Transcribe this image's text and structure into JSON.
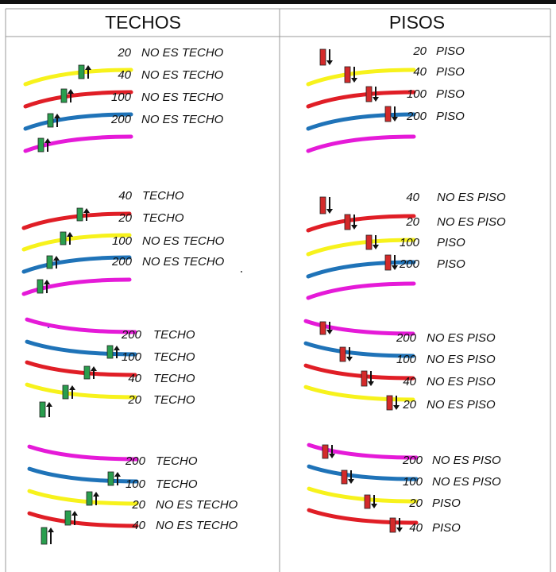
{
  "header": {
    "left": "TECHOS",
    "right": "PISOS"
  },
  "colors": {
    "yellow": "#f7f21c",
    "red": "#e01e26",
    "blue": "#1f73b8",
    "magenta": "#e51ad8",
    "up_candle": "#2a9e4e",
    "down_candle": "#d42a2a",
    "arrow": "#111111"
  },
  "panels": [
    {
      "id": "techos-1",
      "column": "left",
      "orientation": "rising",
      "marker": "up",
      "lines": [
        {
          "color": "yellow",
          "number": "20",
          "label": "NO ES TECHO"
        },
        {
          "color": "red",
          "number": "40",
          "label": "NO ES TECHO"
        },
        {
          "color": "blue",
          "number": "100",
          "label": "NO ES TECHO"
        },
        {
          "color": "magenta",
          "number": "200",
          "label": "NO ES TECHO"
        }
      ]
    },
    {
      "id": "pisos-1",
      "column": "right",
      "orientation": "rising",
      "marker": "down",
      "lines": [
        {
          "color": "yellow",
          "number": "20",
          "label": "PISO"
        },
        {
          "color": "red",
          "number": "40",
          "label": "PISO"
        },
        {
          "color": "blue",
          "number": "100",
          "label": "PISO"
        },
        {
          "color": "magenta",
          "number": "200",
          "label": "PISO"
        }
      ]
    },
    {
      "id": "techos-2",
      "column": "left",
      "orientation": "rising",
      "marker": "up",
      "lines": [
        {
          "color": "red",
          "number": "40",
          "label": "TECHO"
        },
        {
          "color": "yellow",
          "number": "20",
          "label": "TECHO"
        },
        {
          "color": "blue",
          "number": "100",
          "label": "NO ES TECHO"
        },
        {
          "color": "magenta",
          "number": "200",
          "label": "NO ES TECHO"
        }
      ]
    },
    {
      "id": "pisos-2",
      "column": "right",
      "orientation": "rising",
      "marker": "down",
      "lines": [
        {
          "color": "red",
          "number": "40",
          "label": "NO ES PISO"
        },
        {
          "color": "yellow",
          "number": "20",
          "label": "NO ES PISO"
        },
        {
          "color": "blue",
          "number": "100",
          "label": "PISO"
        },
        {
          "color": "magenta",
          "number": "200",
          "label": "PISO"
        }
      ]
    },
    {
      "id": "techos-3",
      "column": "left",
      "orientation": "falling",
      "marker": "up",
      "lines": [
        {
          "color": "magenta",
          "number": "200",
          "label": "TECHO"
        },
        {
          "color": "blue",
          "number": "100",
          "label": "TECHO"
        },
        {
          "color": "red",
          "number": "40",
          "label": "TECHO"
        },
        {
          "color": "yellow",
          "number": "20",
          "label": "TECHO"
        }
      ]
    },
    {
      "id": "pisos-3",
      "column": "right",
      "orientation": "falling",
      "marker": "down",
      "lines": [
        {
          "color": "magenta",
          "number": "200",
          "label": "NO ES PISO"
        },
        {
          "color": "blue",
          "number": "100",
          "label": "NO ES PISO"
        },
        {
          "color": "red",
          "number": "40",
          "label": "NO ES PISO"
        },
        {
          "color": "yellow",
          "number": "20",
          "label": "NO ES PISO"
        }
      ]
    },
    {
      "id": "techos-4",
      "column": "left",
      "orientation": "falling",
      "marker": "up",
      "lines": [
        {
          "color": "magenta",
          "number": "200",
          "label": "TECHO"
        },
        {
          "color": "blue",
          "number": "100",
          "label": "TECHO"
        },
        {
          "color": "yellow",
          "number": "20",
          "label": "NO ES TECHO"
        },
        {
          "color": "red",
          "number": "40",
          "label": "NO ES TECHO"
        }
      ]
    },
    {
      "id": "pisos-4",
      "column": "right",
      "orientation": "falling",
      "marker": "down",
      "lines": [
        {
          "color": "magenta",
          "number": "200",
          "label": "NO ES PISO"
        },
        {
          "color": "blue",
          "number": "100",
          "label": "NO ES PISO"
        },
        {
          "color": "yellow",
          "number": "20",
          "label": "PISO"
        },
        {
          "color": "red",
          "number": "40",
          "label": "PISO"
        }
      ]
    }
  ]
}
